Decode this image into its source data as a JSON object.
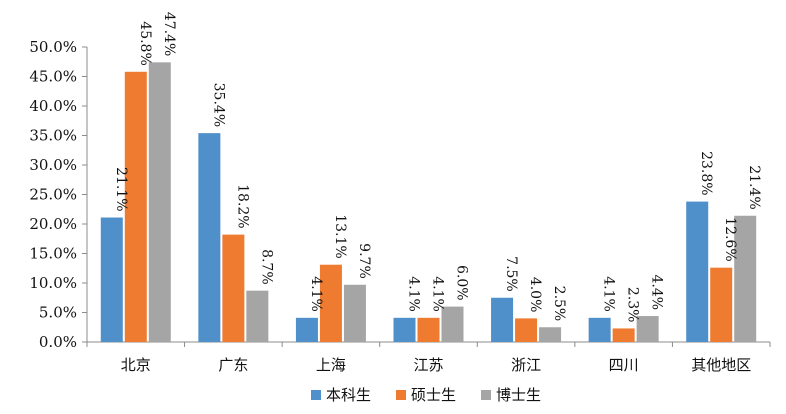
{
  "chart_data": {
    "type": "bar",
    "title": "",
    "xlabel": "",
    "ylabel": "",
    "categories": [
      "北京",
      "广东",
      "上海",
      "江苏",
      "浙江",
      "四川",
      "其他地区"
    ],
    "series": [
      {
        "name": "本科生",
        "color": "#4f8fca",
        "values": [
          21.1,
          35.4,
          4.1,
          4.1,
          7.5,
          4.1,
          23.8
        ]
      },
      {
        "name": "硕士生",
        "color": "#ee7b30",
        "values": [
          45.8,
          18.2,
          13.1,
          4.1,
          4.0,
          2.3,
          12.6
        ]
      },
      {
        "name": "博士生",
        "color": "#a5a5a5",
        "values": [
          47.4,
          8.7,
          9.7,
          6.0,
          2.5,
          4.4,
          21.4
        ]
      }
    ],
    "data_labels": [
      [
        "21.1%",
        "35.4%",
        "4.1%",
        "4.1%",
        "7.5%",
        "4.1%",
        "23.8%"
      ],
      [
        "45.8%",
        "18.2%",
        "13.1%",
        "4.1%",
        "4.0%",
        "2.3%",
        "12.6%"
      ],
      [
        "47.4%",
        "8.7%",
        "9.7%",
        "6.0%",
        "2.5%",
        "4.4%",
        "21.4%"
      ]
    ],
    "ylim": [
      0,
      50
    ],
    "yticks": [
      0,
      5,
      10,
      15,
      20,
      25,
      30,
      35,
      40,
      45,
      50
    ],
    "ytick_labels": [
      "0.0%",
      "5.0%",
      "10.0%",
      "15.0%",
      "20.0%",
      "25.0%",
      "30.0%",
      "35.0%",
      "40.0%",
      "45.0%",
      "50.0%"
    ],
    "grid": false,
    "legend_position": "bottom"
  }
}
